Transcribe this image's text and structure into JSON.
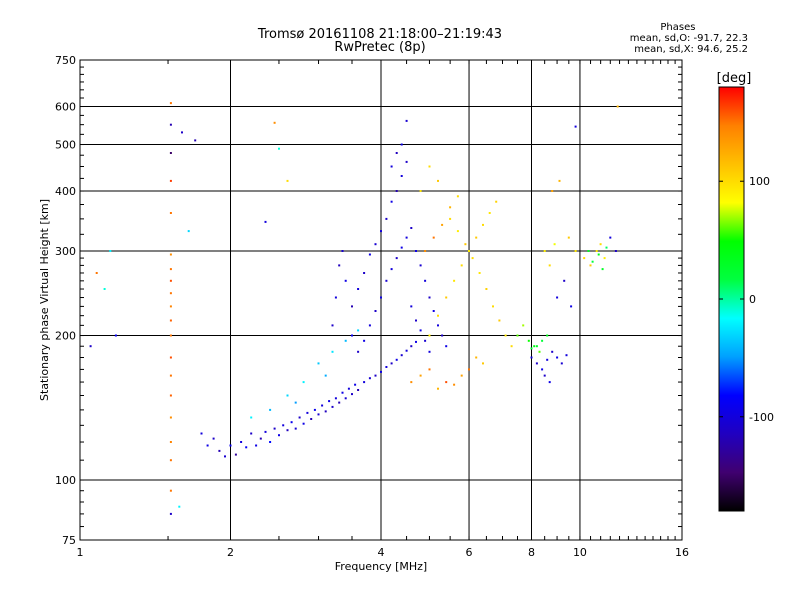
{
  "title": {
    "line1": "Tromsø 20161108 21:18:00–21:19:43",
    "line2": "RwPretec (8p)"
  },
  "stats": {
    "header": "Phases",
    "line1": "mean, sd,O: -91.7, 22.3",
    "line2": "mean, sd,X:  94.6, 25.2"
  },
  "chart_data": {
    "type": "scatter",
    "xlabel": "Frequency [MHz]",
    "ylabel": "Stationary phase Virtual Height [km]",
    "x_scale": "log",
    "y_scale": "log",
    "xlim": [
      1,
      16
    ],
    "ylim": [
      75,
      750
    ],
    "x_ticks": [
      1,
      2,
      4,
      6,
      8,
      10,
      16
    ],
    "x_tick_labels": [
      "1",
      "2",
      "4",
      "6",
      "8",
      "10",
      "16"
    ],
    "y_ticks": [
      75,
      100,
      200,
      300,
      400,
      500,
      600,
      750
    ],
    "y_tick_labels": [
      "75",
      "100",
      "200",
      "300",
      "400",
      "500",
      "600",
      "750"
    ],
    "grid": true,
    "colorbar": {
      "label": "[deg]",
      "range": [
        -180,
        180
      ],
      "ticks": [
        100,
        0,
        -100
      ],
      "tick_labels": [
        "100",
        "0",
        "-100"
      ],
      "colormap": [
        "#000000",
        "#400070",
        "#2000c0",
        "#0000ff",
        "#00a0ff",
        "#00ffff",
        "#00ff40",
        "#00ff00",
        "#ffff00",
        "#ffc000",
        "#ff8000",
        "#ff0000"
      ]
    },
    "series": [
      {
        "points": [
          [
            1.52,
            110,
            150
          ],
          [
            1.52,
            120,
            145
          ],
          [
            1.52,
            135,
            140
          ],
          [
            1.52,
            150,
            155
          ],
          [
            1.52,
            165,
            150
          ],
          [
            1.52,
            180,
            160
          ],
          [
            1.52,
            200,
            150
          ],
          [
            1.52,
            215,
            155
          ],
          [
            1.52,
            230,
            145
          ],
          [
            1.52,
            245,
            150
          ],
          [
            1.52,
            260,
            160
          ],
          [
            1.52,
            275,
            150
          ],
          [
            1.52,
            295,
            140
          ],
          [
            1.52,
            360,
            150
          ],
          [
            1.52,
            420,
            165
          ],
          [
            1.52,
            480,
            -150
          ],
          [
            1.52,
            550,
            -120
          ],
          [
            1.52,
            610,
            150
          ],
          [
            1.52,
            95,
            150
          ],
          [
            1.52,
            85,
            -110
          ],
          [
            1.75,
            125,
            -100
          ],
          [
            1.8,
            118,
            -95
          ],
          [
            1.85,
            122,
            -110
          ],
          [
            1.9,
            115,
            -120
          ],
          [
            1.95,
            112,
            -105
          ],
          [
            2.0,
            118,
            -90
          ],
          [
            2.05,
            113,
            -130
          ],
          [
            2.1,
            120,
            -100
          ],
          [
            2.15,
            117,
            -85
          ],
          [
            2.2,
            125,
            -110
          ],
          [
            2.25,
            118,
            -95
          ],
          [
            2.3,
            122,
            -120
          ],
          [
            2.35,
            126,
            -100
          ],
          [
            2.4,
            120,
            -80
          ],
          [
            2.45,
            128,
            -110
          ],
          [
            2.5,
            124,
            -95
          ],
          [
            2.55,
            130,
            -100
          ],
          [
            2.6,
            127,
            -115
          ],
          [
            2.65,
            132,
            -90
          ],
          [
            2.7,
            128,
            -105
          ],
          [
            2.75,
            135,
            -110
          ],
          [
            2.8,
            131,
            -95
          ],
          [
            2.85,
            138,
            -100
          ],
          [
            2.9,
            134,
            -120
          ],
          [
            2.95,
            140,
            -90
          ],
          [
            3.0,
            137,
            -105
          ],
          [
            3.05,
            143,
            -100
          ],
          [
            3.1,
            139,
            -115
          ],
          [
            3.15,
            146,
            -95
          ],
          [
            3.2,
            142,
            -110
          ],
          [
            3.25,
            148,
            -100
          ],
          [
            3.3,
            145,
            -120
          ],
          [
            3.35,
            152,
            -95
          ],
          [
            3.4,
            148,
            -105
          ],
          [
            3.45,
            155,
            -100
          ],
          [
            3.5,
            151,
            -110
          ],
          [
            3.55,
            158,
            -95
          ],
          [
            3.6,
            154,
            -120
          ],
          [
            3.7,
            160,
            -100
          ],
          [
            3.8,
            163,
            -105
          ],
          [
            3.9,
            165,
            -110
          ],
          [
            4.0,
            168,
            -95
          ],
          [
            4.1,
            172,
            -100
          ],
          [
            4.2,
            175,
            -110
          ],
          [
            4.3,
            178,
            -95
          ],
          [
            4.4,
            182,
            -105
          ],
          [
            4.5,
            186,
            -100
          ],
          [
            4.6,
            190,
            -110
          ],
          [
            4.7,
            194,
            -95
          ],
          [
            3.2,
            210,
            -110
          ],
          [
            3.25,
            240,
            -100
          ],
          [
            3.3,
            280,
            -115
          ],
          [
            3.35,
            300,
            -105
          ],
          [
            3.4,
            260,
            -95
          ],
          [
            3.5,
            230,
            -120
          ],
          [
            3.6,
            250,
            -100
          ],
          [
            3.7,
            270,
            -110
          ],
          [
            3.8,
            295,
            -95
          ],
          [
            3.9,
            310,
            -105
          ],
          [
            4.0,
            330,
            -100
          ],
          [
            4.1,
            350,
            -110
          ],
          [
            4.2,
            380,
            -95
          ],
          [
            4.3,
            400,
            -120
          ],
          [
            4.4,
            430,
            -100
          ],
          [
            4.5,
            460,
            -110
          ],
          [
            4.4,
            500,
            -95
          ],
          [
            4.5,
            560,
            -105
          ],
          [
            4.2,
            450,
            -100
          ],
          [
            4.3,
            480,
            -115
          ],
          [
            3.5,
            200,
            -90
          ],
          [
            3.6,
            185,
            -110
          ],
          [
            3.7,
            195,
            -95
          ],
          [
            3.8,
            210,
            -100
          ],
          [
            3.9,
            225,
            -110
          ],
          [
            4.0,
            240,
            -95
          ],
          [
            4.1,
            260,
            -105
          ],
          [
            4.2,
            275,
            -100
          ],
          [
            4.3,
            290,
            -110
          ],
          [
            4.4,
            305,
            -95
          ],
          [
            4.5,
            320,
            -100
          ],
          [
            4.6,
            335,
            -110
          ],
          [
            4.7,
            300,
            -95
          ],
          [
            4.8,
            280,
            -105
          ],
          [
            4.9,
            260,
            -100
          ],
          [
            5.0,
            240,
            -110
          ],
          [
            5.1,
            225,
            -95
          ],
          [
            5.2,
            210,
            -100
          ],
          [
            5.3,
            200,
            -110
          ],
          [
            5.4,
            190,
            -95
          ],
          [
            4.6,
            230,
            -100
          ],
          [
            4.7,
            215,
            -110
          ],
          [
            4.8,
            205,
            -95
          ],
          [
            4.9,
            195,
            -105
          ],
          [
            5.0,
            185,
            -100
          ],
          [
            2.4,
            140,
            -40
          ],
          [
            2.6,
            150,
            -30
          ],
          [
            2.8,
            160,
            -20
          ],
          [
            3.0,
            175,
            -35
          ],
          [
            3.2,
            185,
            -25
          ],
          [
            3.4,
            195,
            -40
          ],
          [
            3.6,
            205,
            -30
          ],
          [
            2.2,
            135,
            -20
          ],
          [
            2.7,
            145,
            -50
          ],
          [
            3.1,
            165,
            -45
          ],
          [
            4.6,
            160,
            140
          ],
          [
            4.8,
            165,
            130
          ],
          [
            5.0,
            170,
            150
          ],
          [
            5.2,
            155,
            120
          ],
          [
            5.4,
            160,
            160
          ],
          [
            5.6,
            158,
            140
          ],
          [
            5.8,
            165,
            130
          ],
          [
            6.0,
            170,
            150
          ],
          [
            6.2,
            180,
            120
          ],
          [
            6.4,
            175,
            110
          ],
          [
            5.0,
            200,
            90
          ],
          [
            5.2,
            220,
            100
          ],
          [
            5.4,
            240,
            110
          ],
          [
            5.6,
            260,
            95
          ],
          [
            5.8,
            280,
            100
          ],
          [
            6.0,
            300,
            90
          ],
          [
            6.2,
            320,
            110
          ],
          [
            6.4,
            340,
            100
          ],
          [
            6.6,
            360,
            95
          ],
          [
            6.8,
            380,
            105
          ],
          [
            5.5,
            350,
            100
          ],
          [
            5.7,
            330,
            90
          ],
          [
            5.9,
            310,
            110
          ],
          [
            6.1,
            290,
            100
          ],
          [
            6.3,
            270,
            95
          ],
          [
            6.5,
            250,
            105
          ],
          [
            6.7,
            230,
            100
          ],
          [
            6.9,
            215,
            110
          ],
          [
            7.1,
            200,
            95
          ],
          [
            7.3,
            190,
            100
          ],
          [
            4.9,
            300,
            140
          ],
          [
            5.1,
            320,
            150
          ],
          [
            5.3,
            340,
            130
          ],
          [
            5.5,
            370,
            120
          ],
          [
            5.7,
            390,
            100
          ],
          [
            5.0,
            450,
            100
          ],
          [
            5.2,
            420,
            110
          ],
          [
            4.8,
            400,
            95
          ],
          [
            7.5,
            200,
            60
          ],
          [
            7.7,
            210,
            70
          ],
          [
            7.9,
            195,
            50
          ],
          [
            8.1,
            190,
            40
          ],
          [
            8.3,
            185,
            60
          ],
          [
            8.0,
            180,
            -100
          ],
          [
            8.2,
            175,
            -110
          ],
          [
            8.4,
            170,
            -95
          ],
          [
            8.6,
            178,
            -100
          ],
          [
            8.8,
            185,
            -110
          ],
          [
            9.0,
            180,
            -95
          ],
          [
            9.2,
            175,
            -105
          ],
          [
            9.4,
            182,
            -100
          ],
          [
            8.5,
            165,
            -110
          ],
          [
            8.7,
            160,
            -95
          ],
          [
            8.2,
            190,
            30
          ],
          [
            8.4,
            195,
            20
          ],
          [
            8.6,
            200,
            35
          ],
          [
            8.0,
            188,
            25
          ],
          [
            8.5,
            300,
            90
          ],
          [
            8.7,
            280,
            100
          ],
          [
            8.9,
            310,
            80
          ],
          [
            9.5,
            320,
            110
          ],
          [
            9.8,
            300,
            95
          ],
          [
            10.2,
            290,
            100
          ],
          [
            10.5,
            280,
            110
          ],
          [
            10.8,
            300,
            95
          ],
          [
            11.0,
            310,
            100
          ],
          [
            11.2,
            290,
            90
          ],
          [
            10.4,
            300,
            30
          ],
          [
            10.6,
            285,
            20
          ],
          [
            10.9,
            295,
            40
          ],
          [
            11.1,
            275,
            30
          ],
          [
            11.3,
            305,
            10
          ],
          [
            9.0,
            240,
            -100
          ],
          [
            9.3,
            260,
            -110
          ],
          [
            9.6,
            230,
            -95
          ],
          [
            11.5,
            320,
            -100
          ],
          [
            11.8,
            300,
            -110
          ],
          [
            9.8,
            545,
            -100
          ],
          [
            11.9,
            600,
            120
          ],
          [
            8.8,
            400,
            130
          ],
          [
            9.1,
            420,
            120
          ],
          [
            1.05,
            190,
            -110
          ],
          [
            1.08,
            270,
            150
          ],
          [
            1.12,
            250,
            -10
          ],
          [
            1.15,
            300,
            -20
          ],
          [
            1.18,
            200,
            -90
          ],
          [
            1.6,
            530,
            -110
          ],
          [
            1.65,
            330,
            -30
          ],
          [
            1.7,
            510,
            -120
          ],
          [
            1.58,
            88,
            -20
          ],
          [
            2.45,
            555,
            140
          ],
          [
            2.5,
            490,
            -10
          ],
          [
            2.35,
            345,
            -100
          ],
          [
            2.6,
            420,
            100
          ]
        ]
      }
    ]
  }
}
